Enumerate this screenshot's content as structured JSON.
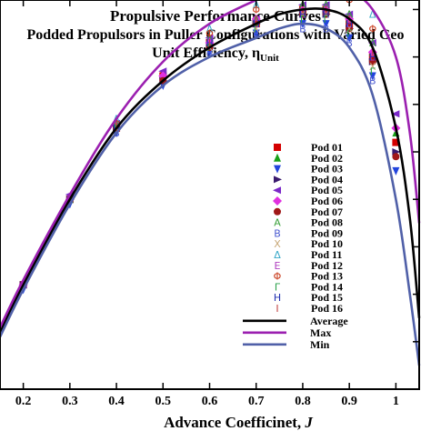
{
  "chart_data": {
    "type": "line",
    "title": "Propulsive Performance Curves",
    "subtitle": "Podded Propulsors in Puller Configurations with Varied Geo",
    "subtitle2": "Unit Efficiency, η",
    "subtitle2_sub": "Unit",
    "xlabel_main": "Advance Coefficinet, ",
    "xlabel_var": "J",
    "xlim": [
      0.15,
      1.05
    ],
    "ylim": [
      0.0,
      0.82
    ],
    "xticks": [
      "0.2",
      "0.3",
      "0.4",
      "0.5",
      "0.6",
      "0.7",
      "0.8",
      "0.9",
      "1"
    ],
    "grid": false,
    "legend_position": "right",
    "lines": [
      {
        "name": "Average",
        "color": "#000000",
        "x": [
          0.15,
          0.2,
          0.3,
          0.4,
          0.5,
          0.6,
          0.7,
          0.75,
          0.8,
          0.85,
          0.9,
          0.95,
          1.0,
          1.03,
          1.05
        ],
        "y": [
          0.12,
          0.22,
          0.4,
          0.55,
          0.65,
          0.72,
          0.77,
          0.79,
          0.8,
          0.8,
          0.78,
          0.72,
          0.55,
          0.36,
          0.15
        ]
      },
      {
        "name": "Max",
        "color": "#9b1fb0",
        "x": [
          0.15,
          0.2,
          0.3,
          0.4,
          0.5,
          0.6,
          0.7,
          0.75,
          0.8,
          0.85,
          0.9,
          0.95,
          1.0,
          1.03,
          1.05
        ],
        "y": [
          0.13,
          0.23,
          0.41,
          0.57,
          0.69,
          0.77,
          0.82,
          0.84,
          0.85,
          0.85,
          0.84,
          0.8,
          0.7,
          0.54,
          0.35
        ]
      },
      {
        "name": "Min",
        "color": "#5060a8",
        "x": [
          0.15,
          0.2,
          0.3,
          0.4,
          0.5,
          0.6,
          0.7,
          0.75,
          0.8,
          0.85,
          0.9,
          0.95,
          1.0,
          1.03,
          1.05
        ],
        "y": [
          0.11,
          0.21,
          0.39,
          0.54,
          0.64,
          0.7,
          0.74,
          0.76,
          0.77,
          0.76,
          0.72,
          0.62,
          0.4,
          0.2,
          0.05
        ]
      }
    ],
    "pods": [
      {
        "name": "Pod 01",
        "marker": "square",
        "color": "#d40000",
        "x": [
          0.2,
          0.3,
          0.4,
          0.5,
          0.6,
          0.7,
          0.8,
          0.85,
          0.9,
          0.95,
          1.0
        ],
        "y": [
          0.22,
          0.4,
          0.55,
          0.66,
          0.73,
          0.77,
          0.8,
          0.8,
          0.77,
          0.7,
          0.52
        ]
      },
      {
        "name": "Pod 02",
        "marker": "triangle-up",
        "color": "#18a018",
        "x": [
          0.2,
          0.3,
          0.4,
          0.5,
          0.6,
          0.7,
          0.8,
          0.85,
          0.9,
          0.95,
          1.0
        ],
        "y": [
          0.22,
          0.4,
          0.56,
          0.66,
          0.73,
          0.78,
          0.8,
          0.8,
          0.78,
          0.71,
          0.54
        ]
      },
      {
        "name": "Pod 03",
        "marker": "triangle-down",
        "color": "#2244dd",
        "x": [
          0.2,
          0.3,
          0.4,
          0.5,
          0.6,
          0.7,
          0.8,
          0.85,
          0.9,
          0.95,
          1.0
        ],
        "y": [
          0.21,
          0.39,
          0.54,
          0.64,
          0.71,
          0.75,
          0.77,
          0.77,
          0.74,
          0.66,
          0.46
        ]
      },
      {
        "name": "Pod 04",
        "marker": "triangle-right",
        "color": "#3a1a6e",
        "x": [
          0.2,
          0.3,
          0.4,
          0.5,
          0.6,
          0.7,
          0.8,
          0.85,
          0.9,
          0.95,
          1.0
        ],
        "y": [
          0.22,
          0.4,
          0.55,
          0.65,
          0.72,
          0.77,
          0.79,
          0.79,
          0.76,
          0.69,
          0.5
        ]
      },
      {
        "name": "Pod 05",
        "marker": "triangle-left",
        "color": "#7a28c8",
        "x": [
          0.2,
          0.3,
          0.4,
          0.5,
          0.6,
          0.7,
          0.8,
          0.85,
          0.9,
          0.95,
          1.0
        ],
        "y": [
          0.22,
          0.41,
          0.56,
          0.67,
          0.74,
          0.78,
          0.81,
          0.81,
          0.79,
          0.73,
          0.58
        ]
      },
      {
        "name": "Pod 06",
        "marker": "diamond",
        "color": "#e030e0",
        "x": [
          0.2,
          0.3,
          0.4,
          0.5,
          0.6,
          0.7,
          0.8,
          0.85,
          0.9,
          0.95,
          1.0
        ],
        "y": [
          0.22,
          0.4,
          0.56,
          0.66,
          0.73,
          0.78,
          0.8,
          0.8,
          0.78,
          0.71,
          0.55
        ]
      },
      {
        "name": "Pod 07",
        "marker": "circle",
        "color": "#a01818",
        "x": [
          0.2,
          0.3,
          0.4,
          0.5,
          0.6,
          0.7,
          0.8,
          0.85,
          0.9,
          0.95,
          1.0
        ],
        "y": [
          0.22,
          0.4,
          0.55,
          0.65,
          0.72,
          0.77,
          0.79,
          0.79,
          0.76,
          0.69,
          0.49
        ]
      },
      {
        "name": "Pod 08",
        "marker": "letter",
        "symbol": "A",
        "color": "#3aa03a",
        "x": [
          0.4,
          0.6,
          0.7,
          0.8,
          0.85,
          0.9,
          0.95
        ],
        "y": [
          0.56,
          0.74,
          0.78,
          0.81,
          0.81,
          0.79,
          0.73
        ]
      },
      {
        "name": "Pod 09",
        "marker": "letter",
        "symbol": "B",
        "color": "#4a5ad0",
        "x": [
          0.4,
          0.6,
          0.7,
          0.8,
          0.85,
          0.9,
          0.95
        ],
        "y": [
          0.54,
          0.71,
          0.75,
          0.76,
          0.76,
          0.73,
          0.65
        ]
      },
      {
        "name": "Pod 10",
        "marker": "letter",
        "symbol": "X",
        "color": "#c8a878",
        "x": [
          0.4,
          0.6,
          0.7,
          0.8,
          0.85,
          0.9,
          0.95
        ],
        "y": [
          0.55,
          0.72,
          0.76,
          0.79,
          0.79,
          0.76,
          0.68
        ]
      },
      {
        "name": "Pod 11",
        "marker": "letter",
        "symbol": "Δ",
        "color": "#38a8c8",
        "x": [
          0.4,
          0.6,
          0.7,
          0.8,
          0.85,
          0.9,
          0.95
        ],
        "y": [
          0.57,
          0.76,
          0.81,
          0.84,
          0.86,
          0.84,
          0.79
        ]
      },
      {
        "name": "Pod 12",
        "marker": "letter",
        "symbol": "E",
        "color": "#b040c0",
        "x": [
          0.4,
          0.6,
          0.7,
          0.8,
          0.85,
          0.9,
          0.95
        ],
        "y": [
          0.55,
          0.73,
          0.77,
          0.79,
          0.8,
          0.77,
          0.7
        ]
      },
      {
        "name": "Pod 13",
        "marker": "letter",
        "symbol": "Φ",
        "color": "#c83a1a",
        "x": [
          0.4,
          0.6,
          0.7,
          0.8,
          0.85,
          0.9,
          0.95
        ],
        "y": [
          0.56,
          0.75,
          0.8,
          0.83,
          0.83,
          0.82,
          0.76
        ]
      },
      {
        "name": "Pod 14",
        "marker": "letter",
        "symbol": "Γ",
        "color": "#28a048",
        "x": [
          0.4,
          0.6,
          0.7,
          0.8,
          0.85,
          0.9,
          0.95
        ],
        "y": [
          0.55,
          0.72,
          0.76,
          0.78,
          0.78,
          0.75,
          0.67
        ]
      },
      {
        "name": "Pod 15",
        "marker": "letter",
        "symbol": "H",
        "color": "#2030b0",
        "x": [
          0.4,
          0.6,
          0.7,
          0.8,
          0.85,
          0.9,
          0.95
        ],
        "y": [
          0.55,
          0.73,
          0.77,
          0.79,
          0.79,
          0.77,
          0.7
        ]
      },
      {
        "name": "Pod 16",
        "marker": "letter",
        "symbol": "I",
        "color": "#c04040",
        "x": [
          0.4,
          0.6,
          0.7,
          0.8,
          0.85,
          0.9,
          0.95
        ],
        "y": [
          0.55,
          0.73,
          0.78,
          0.8,
          0.8,
          0.78,
          0.71
        ]
      }
    ]
  }
}
